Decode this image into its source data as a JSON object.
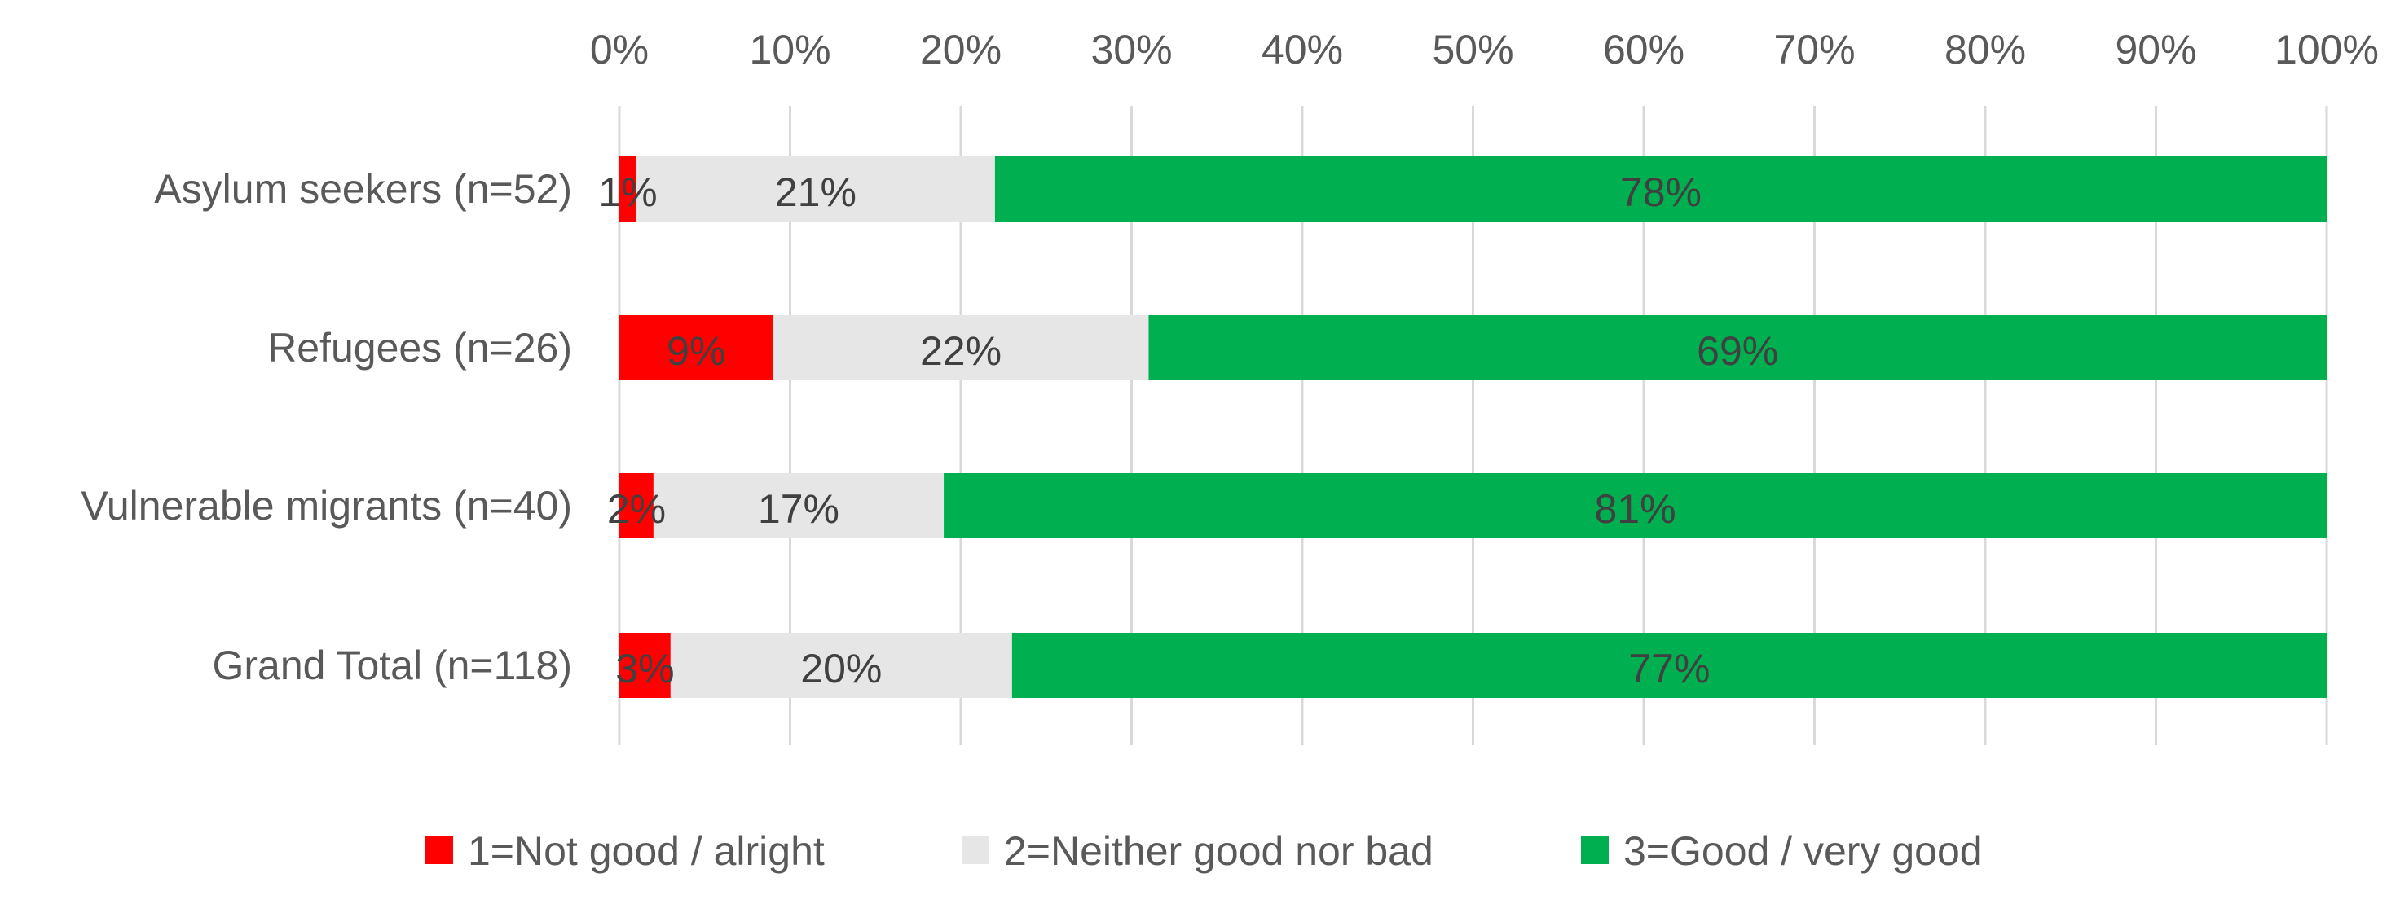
{
  "chart_data": {
    "type": "bar",
    "orientation": "horizontal",
    "stacked": "percent",
    "categories": [
      "Asylum seekers (n=52)",
      "Refugees (n=26)",
      "Vulnerable migrants (n=40)",
      "Grand Total (n=118)"
    ],
    "series": [
      {
        "name": "1=Not good / alright",
        "color": "#ff0000",
        "values": [
          1,
          9,
          2,
          3
        ],
        "labels": [
          "1%",
          "9%",
          "2%",
          "3%"
        ]
      },
      {
        "name": "2=Neither good nor bad",
        "color": "#e6e6e6",
        "values": [
          21,
          22,
          17,
          20
        ],
        "labels": [
          "21%",
          "22%",
          "17%",
          "20%"
        ]
      },
      {
        "name": "3=Good / very good",
        "color": "#00b050",
        "values": [
          78,
          69,
          81,
          77
        ],
        "labels": [
          "78%",
          "69%",
          "81%",
          "77%"
        ]
      }
    ],
    "x_ticks": [
      "0%",
      "10%",
      "20%",
      "30%",
      "40%",
      "50%",
      "60%",
      "70%",
      "80%",
      "90%",
      "100%"
    ],
    "xlim": [
      0,
      100
    ],
    "axis_position": "top",
    "grid": true,
    "legend_position": "bottom",
    "title": "",
    "xlabel": "",
    "ylabel": ""
  }
}
